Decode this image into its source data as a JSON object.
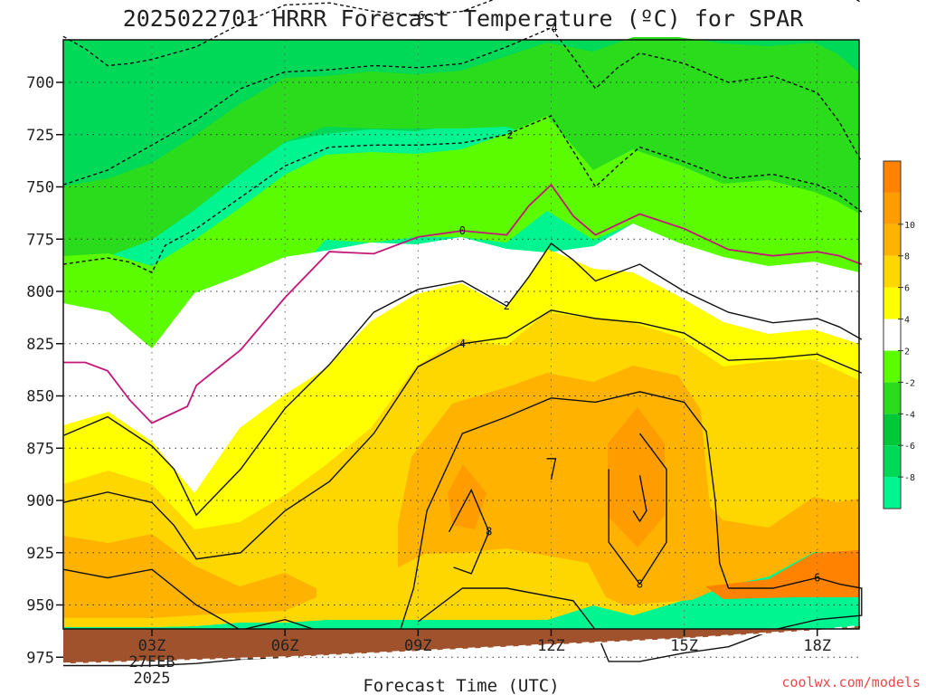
{
  "chart_data": {
    "type": "contour",
    "title": "2025022701 HRRR Forecast Temperature (ºC) for SPAR",
    "xlabel": "Forecast Time (UTC)",
    "credit": "coolwx.com/models",
    "x_hours": [
      1,
      19
    ],
    "x_ticks": [
      {
        "hour": 3,
        "lines": [
          "03Z",
          "27FEB",
          "2025"
        ]
      },
      {
        "hour": 6,
        "lines": [
          "06Z"
        ]
      },
      {
        "hour": 9,
        "lines": [
          "09Z"
        ]
      },
      {
        "hour": 12,
        "lines": [
          "12Z"
        ]
      },
      {
        "hour": 15,
        "lines": [
          "15Z"
        ]
      },
      {
        "hour": 18,
        "lines": [
          "18Z"
        ]
      }
    ],
    "y_ticks": [
      700,
      725,
      750,
      775,
      800,
      825,
      850,
      875,
      900,
      925,
      950,
      975
    ],
    "colorbar": {
      "levels": [
        -10,
        -8,
        -6,
        -4,
        -2,
        2,
        4,
        6,
        8,
        10,
        12
      ],
      "labels": [
        "-8",
        "-6",
        "-4",
        "-2",
        "2",
        "4",
        "6",
        "8",
        "10"
      ],
      "colors": [
        "#00f590",
        "#00d858",
        "#00c838",
        "#2adc1c",
        "#5cfc00",
        "#ffffff",
        "#ffff00",
        "#ffd700",
        "#ffb300",
        "#ff9c00",
        "#ff8200"
      ]
    },
    "isotherms": [
      {
        "value": -6,
        "label": "-6",
        "style": "dashed",
        "points": [
          [
            1,
            678
          ],
          [
            1.5,
            684
          ],
          [
            2,
            692
          ],
          [
            2.5,
            691
          ],
          [
            3,
            689
          ],
          [
            3.5,
            686
          ],
          [
            4,
            683
          ],
          [
            5,
            672
          ],
          [
            6,
            663
          ],
          [
            7,
            662
          ],
          [
            8,
            666
          ],
          [
            9,
            668
          ],
          [
            10,
            666
          ],
          [
            11,
            658
          ],
          [
            12,
            653
          ],
          [
            13,
            656
          ],
          [
            14,
            648
          ],
          [
            15,
            648
          ],
          [
            16,
            651
          ],
          [
            17,
            652
          ],
          [
            18,
            650
          ],
          [
            18.5,
            655
          ],
          [
            19,
            662
          ]
        ]
      },
      {
        "value": -4,
        "label": "-4",
        "style": "dashed",
        "points": [
          [
            1,
            749
          ],
          [
            2,
            742
          ],
          [
            3,
            730
          ],
          [
            4,
            718
          ],
          [
            5,
            703
          ],
          [
            6,
            695
          ],
          [
            7,
            694
          ],
          [
            8,
            692
          ],
          [
            9,
            693
          ],
          [
            10,
            691
          ],
          [
            11,
            683
          ],
          [
            12,
            674
          ],
          [
            12.5,
            688
          ],
          [
            13,
            703
          ],
          [
            13.5,
            693
          ],
          [
            14,
            686
          ],
          [
            15,
            691
          ],
          [
            16,
            700
          ],
          [
            17,
            697
          ],
          [
            18,
            705
          ],
          [
            18.5,
            719
          ],
          [
            19,
            738
          ]
        ]
      },
      {
        "value": -2,
        "label": "-2",
        "style": "dashed",
        "points": [
          [
            1,
            787
          ],
          [
            2,
            784
          ],
          [
            2.5,
            786
          ],
          [
            3,
            791
          ],
          [
            3.3,
            778
          ],
          [
            4,
            770
          ],
          [
            5,
            755
          ],
          [
            6,
            740
          ],
          [
            7,
            731
          ],
          [
            8,
            730
          ],
          [
            9,
            730
          ],
          [
            10,
            729
          ],
          [
            11,
            725
          ],
          [
            12,
            716
          ],
          [
            12.5,
            733
          ],
          [
            13,
            750
          ],
          [
            13.5,
            740
          ],
          [
            14,
            731
          ],
          [
            15,
            738
          ],
          [
            16,
            746
          ],
          [
            17,
            744
          ],
          [
            18,
            749
          ],
          [
            18.5,
            754
          ],
          [
            19,
            762
          ]
        ]
      },
      {
        "value": 0,
        "label": "0",
        "style": "solid",
        "points": [
          [
            1,
            834
          ],
          [
            1.5,
            834
          ],
          [
            2,
            838
          ],
          [
            2.5,
            852
          ],
          [
            3,
            863
          ],
          [
            3.5,
            858
          ],
          [
            3.8,
            855
          ],
          [
            4,
            845
          ],
          [
            5,
            828
          ],
          [
            6,
            803
          ],
          [
            7,
            781
          ],
          [
            8,
            782
          ],
          [
            9,
            774
          ],
          [
            10,
            771
          ],
          [
            11,
            773
          ],
          [
            11.5,
            759
          ],
          [
            12,
            749
          ],
          [
            12.5,
            764
          ],
          [
            13,
            773
          ],
          [
            13.5,
            768
          ],
          [
            14,
            763
          ],
          [
            15,
            770
          ],
          [
            16,
            780
          ],
          [
            17,
            783
          ],
          [
            18,
            781
          ],
          [
            18.5,
            783
          ],
          [
            19,
            787
          ]
        ]
      },
      {
        "value": 2,
        "label": "2",
        "style": "solid",
        "points": [
          [
            1,
            869
          ],
          [
            2,
            860
          ],
          [
            3,
            874
          ],
          [
            3.5,
            885
          ],
          [
            4,
            907
          ],
          [
            5,
            885
          ],
          [
            6,
            856
          ],
          [
            7,
            835
          ],
          [
            8,
            810
          ],
          [
            9,
            799
          ],
          [
            10,
            795
          ],
          [
            11,
            807
          ],
          [
            11.5,
            793
          ],
          [
            12,
            777
          ],
          [
            12.5,
            785
          ],
          [
            13,
            795
          ],
          [
            14,
            787
          ],
          [
            15,
            800
          ],
          [
            16,
            810
          ],
          [
            17,
            815
          ],
          [
            18,
            813
          ],
          [
            18.5,
            817
          ],
          [
            19,
            823
          ]
        ]
      },
      {
        "value": 4,
        "label": "4",
        "style": "solid",
        "points": [
          [
            1,
            901
          ],
          [
            2,
            896
          ],
          [
            3,
            901
          ],
          [
            3.5,
            912
          ],
          [
            4,
            928
          ],
          [
            5,
            925
          ],
          [
            6,
            905
          ],
          [
            7,
            891
          ],
          [
            8,
            868
          ],
          [
            9,
            836
          ],
          [
            10,
            825
          ],
          [
            11,
            822
          ],
          [
            12,
            809
          ],
          [
            13,
            813
          ],
          [
            14,
            815
          ],
          [
            15,
            820
          ],
          [
            16,
            833
          ],
          [
            17,
            832
          ],
          [
            18,
            830
          ],
          [
            19,
            839
          ]
        ]
      },
      {
        "value": 6,
        "label": "6",
        "style": "solid",
        "points": [
          [
            1,
            933
          ],
          [
            2,
            937
          ],
          [
            3,
            933
          ],
          [
            4,
            950
          ],
          [
            5,
            962
          ],
          [
            6,
            957
          ],
          [
            6.7,
            962
          ],
          [
            6.7,
            967
          ],
          [
            6,
            975
          ],
          [
            5,
            976
          ],
          [
            4,
            978
          ],
          [
            3,
            979
          ],
          [
            2,
            979
          ],
          [
            1,
            979
          ]
        ]
      },
      {
        "value": 6,
        "label": "6",
        "style": "solid",
        "points": [
          [
            8.6,
            962
          ],
          [
            8.9,
            942
          ],
          [
            9.2,
            905
          ],
          [
            10,
            868
          ],
          [
            11,
            860
          ],
          [
            12,
            851
          ],
          [
            13,
            853
          ],
          [
            14,
            848
          ],
          [
            15,
            853
          ],
          [
            15.5,
            867
          ],
          [
            15.7,
            900
          ],
          [
            15.8,
            930
          ],
          [
            16,
            942
          ],
          [
            17,
            942
          ],
          [
            18,
            937
          ],
          [
            18.5,
            940
          ],
          [
            19,
            942
          ],
          [
            19,
            955
          ],
          [
            18,
            957
          ],
          [
            17,
            962
          ],
          [
            16,
            970
          ],
          [
            15,
            973
          ],
          [
            14,
            977
          ],
          [
            13.3,
            977
          ],
          [
            13,
            962
          ],
          [
            12.5,
            948
          ],
          [
            11,
            942
          ],
          [
            10,
            942
          ],
          [
            9,
            958
          ]
        ]
      },
      {
        "value": 8,
        "label": "8",
        "style": "solid",
        "points": [
          [
            9.7,
            915
          ],
          [
            10.2,
            895
          ],
          [
            10.6,
            915
          ],
          [
            10.2,
            935
          ],
          [
            9.8,
            932
          ]
        ]
      },
      {
        "value": 8,
        "label": "8",
        "style": "solid",
        "points": [
          [
            14,
            868
          ],
          [
            14.6,
            885
          ],
          [
            14.6,
            920
          ],
          [
            14,
            940
          ],
          [
            13.3,
            920
          ],
          [
            13.3,
            885
          ]
        ]
      },
      {
        "value": 10,
        "label": "",
        "style": "solid",
        "points": [
          [
            11.9,
            880
          ],
          [
            12.1,
            880
          ],
          [
            12,
            890
          ]
        ]
      },
      {
        "value": 10,
        "label": "",
        "style": "solid",
        "points": [
          [
            14,
            888
          ],
          [
            14.15,
            905
          ],
          [
            14,
            910
          ],
          [
            13.85,
            905
          ]
        ]
      }
    ],
    "ground_line": [
      [
        1,
        978
      ],
      [
        6,
        975
      ],
      [
        9,
        972
      ],
      [
        12,
        969
      ],
      [
        15,
        966
      ],
      [
        18,
        962
      ],
      [
        19,
        960
      ]
    ]
  }
}
